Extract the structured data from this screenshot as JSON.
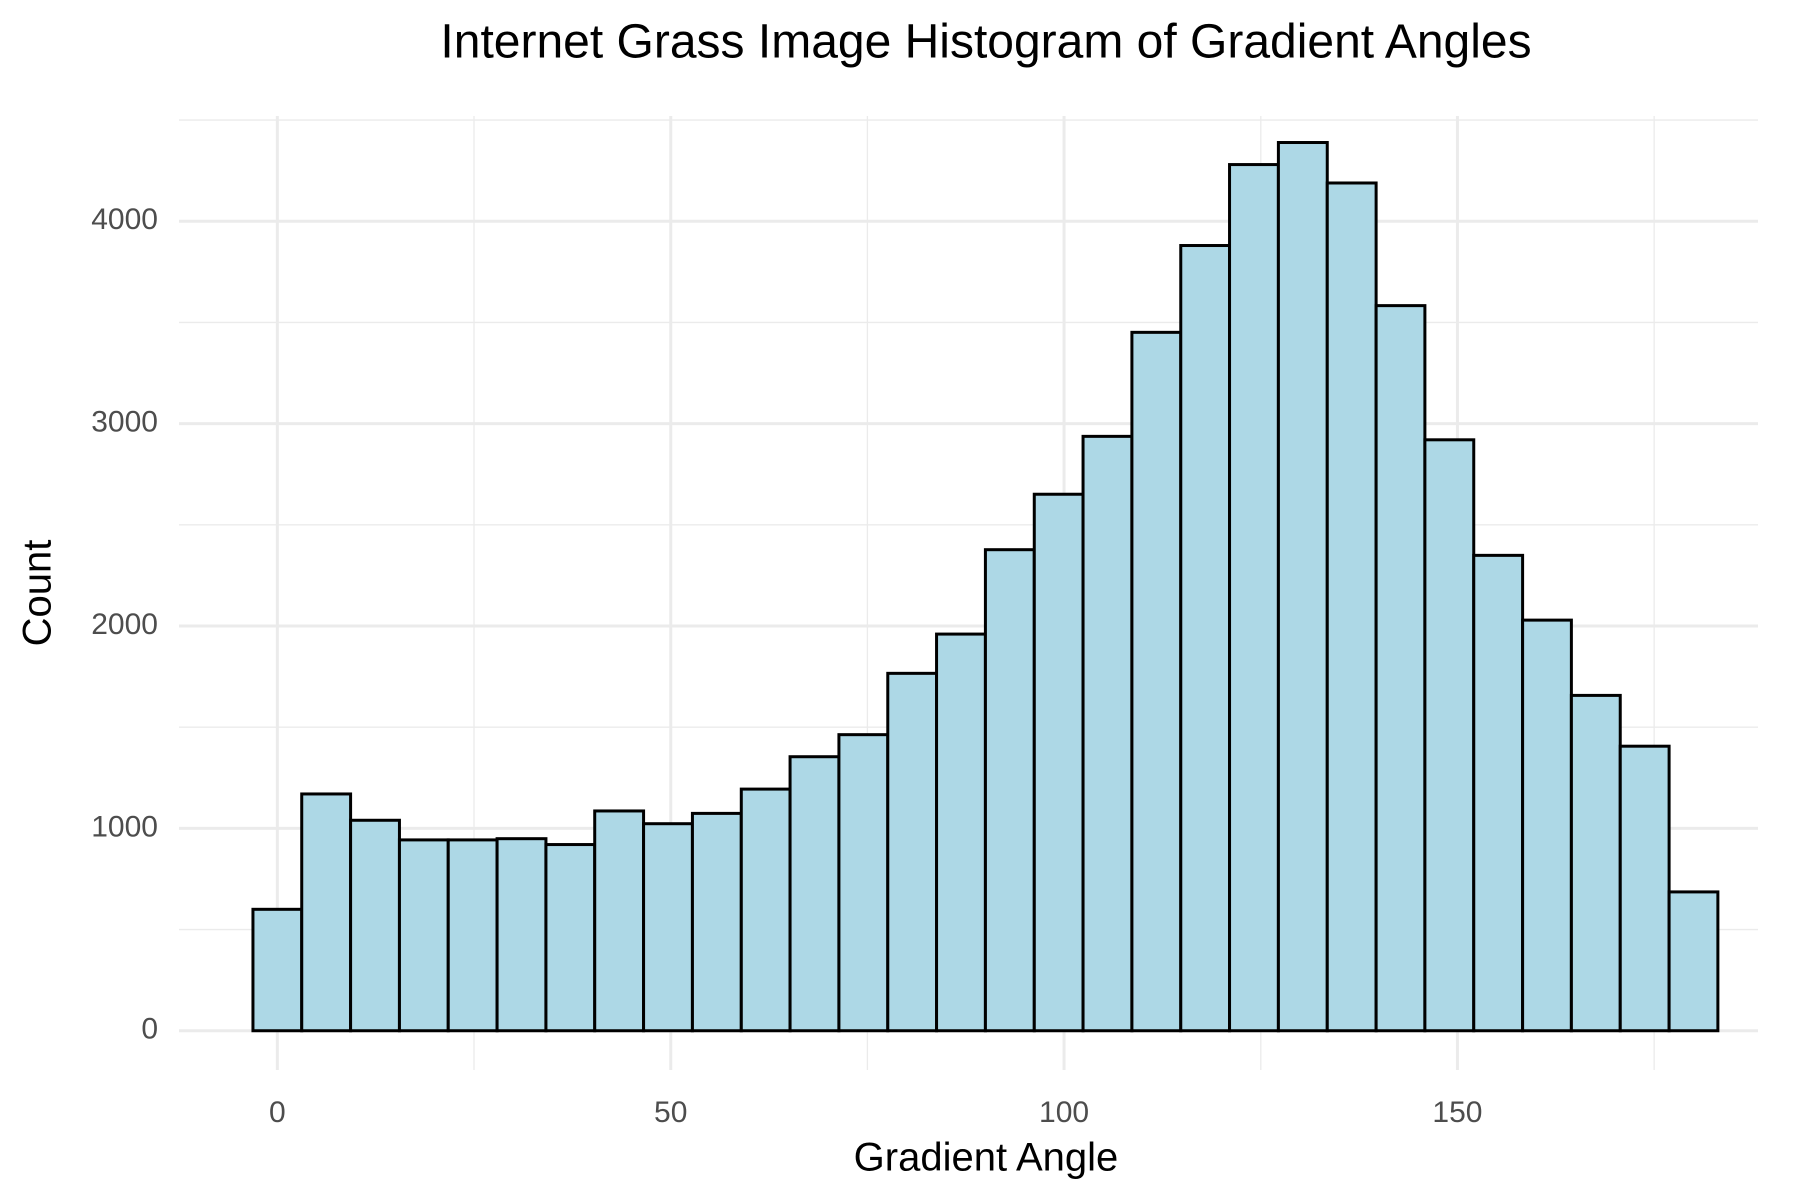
{
  "chart_data": {
    "type": "histogram",
    "title": "Internet Grass Image Histogram of Gradient Angles",
    "x_label": "Gradient Angle",
    "y_label": "Count",
    "bins": [
      -3.1,
      3.1,
      9.31,
      15.52,
      21.72,
      27.93,
      34.14,
      40.34,
      46.55,
      52.76,
      58.97,
      65.17,
      71.38,
      77.59,
      83.79,
      90,
      96.21,
      102.41,
      108.62,
      114.83,
      121.03,
      127.24,
      133.45,
      139.66,
      145.86,
      152.07,
      158.28,
      164.48,
      170.69,
      176.9,
      183.1
    ],
    "values": [
      600,
      1170,
      1040,
      943,
      943,
      949,
      920,
      1086,
      1023,
      1074,
      1194,
      1354,
      1463,
      1766,
      1960,
      2377,
      2651,
      2937,
      3451,
      3880,
      4280,
      4389,
      4189,
      3583,
      2920,
      2349,
      2029,
      1657,
      1406,
      686
    ],
    "color": "#add8e6",
    "edge_color": "#000000",
    "xlim": [
      -12.5,
      188.2
    ],
    "ylim": [
      -194,
      4520
    ],
    "xticks": [
      0,
      50,
      100,
      150
    ],
    "yticks": [
      0,
      1000,
      2000,
      3000,
      4000
    ],
    "x_minor_grid": [
      25,
      75,
      125,
      175
    ],
    "y_minor_grid": [
      500,
      1500,
      2500,
      3500,
      4500
    ],
    "grid": true
  }
}
